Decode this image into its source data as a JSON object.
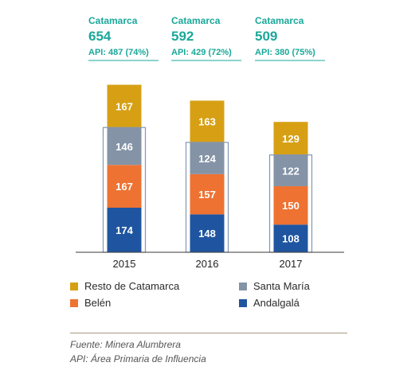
{
  "chart_data": {
    "type": "bar",
    "stacked": true,
    "categories": [
      "2015",
      "2016",
      "2017"
    ],
    "series": [
      {
        "name": "Andalgalá",
        "color": "#1f55a0",
        "values": [
          174,
          148,
          108
        ]
      },
      {
        "name": "Belén",
        "color": "#ee7232",
        "values": [
          167,
          157,
          150
        ]
      },
      {
        "name": "Santa María",
        "color": "#8493a6",
        "values": [
          146,
          124,
          122
        ]
      },
      {
        "name": "Resto de Catamarca",
        "color": "#d7a014",
        "values": [
          167,
          163,
          129
        ]
      }
    ],
    "annotations": [
      {
        "region": "Catamarca",
        "total": "654",
        "api": "API: 487 (74%)",
        "api_value": 487
      },
      {
        "region": "Catamarca",
        "total": "592",
        "api": "API: 429 (72%)",
        "api_value": 429
      },
      {
        "region": "Catamarca",
        "total": "509",
        "api": "API: 380 (75%)",
        "api_value": 380
      }
    ],
    "ylim": [
      0,
      700
    ],
    "grid": false,
    "legend_position": "bottom"
  },
  "legend": [
    {
      "label": "Resto de Catamarca",
      "color": "#d7a014"
    },
    {
      "label": "Santa María",
      "color": "#8493a6"
    },
    {
      "label": "Belén",
      "color": "#ee7232"
    },
    {
      "label": "Andalgalá",
      "color": "#1f55a0"
    }
  ],
  "footer": {
    "source": "Fuente: Minera Alumbrera",
    "api_note": "API: Área Primaria de Influencia"
  },
  "colors": {
    "accent": "#1aa89a",
    "outline": "#8296b4",
    "axis": "#3a3a3a"
  }
}
